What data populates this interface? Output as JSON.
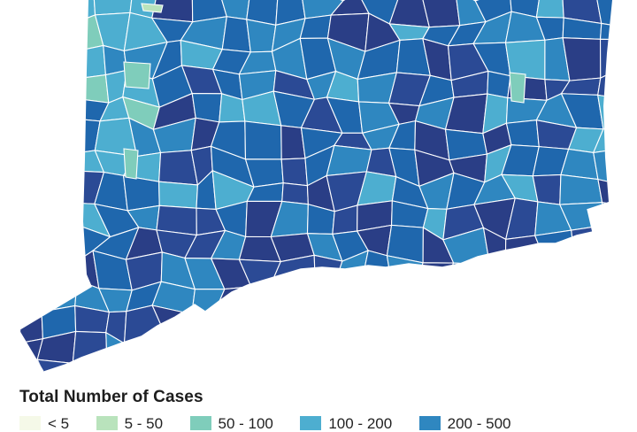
{
  "legend": {
    "title": "Total Number of Cases",
    "bins": [
      {
        "label": "< 5",
        "color": "#f5f9e8"
      },
      {
        "label": "5 - 50",
        "color": "#b9e3bc"
      },
      {
        "label": "50 - 100",
        "color": "#7fcdbb"
      },
      {
        "label": "100 - 200",
        "color": "#4daed0"
      },
      {
        "label": "200 - 500",
        "color": "#2f87c0"
      }
    ]
  },
  "map": {
    "region": "Connecticut",
    "high_colors": [
      "#1f67ad",
      "#2b4a95",
      "#2a3e86"
    ]
  }
}
